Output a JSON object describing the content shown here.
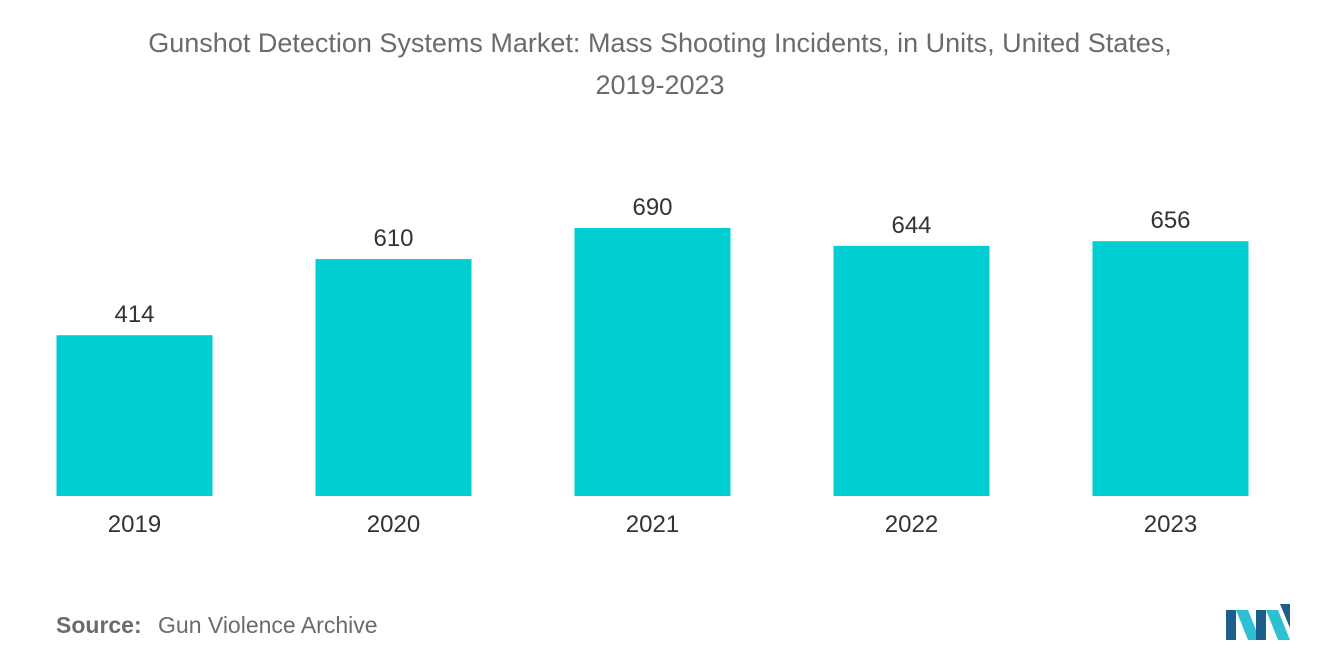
{
  "title_line1": "Gunshot Detection Systems Market: Mass Shooting Incidents, in Units, United States,",
  "title_line2": "2019-2023",
  "source": {
    "label": "Source:",
    "text": "Gun Violence Archive"
  },
  "logo_icon": "mordor-intelligence-logo-icon",
  "colors": {
    "bar": "#00CED1",
    "text": "#333333",
    "logo_dark": "#1d5f8a",
    "logo_light": "#2fbfd3"
  },
  "chart_data": {
    "type": "bar",
    "title": "Gunshot Detection Systems Market: Mass Shooting Incidents, in Units, United States, 2019-2023",
    "categories": [
      "2019",
      "2020",
      "2021",
      "2022",
      "2023"
    ],
    "values": [
      414,
      610,
      690,
      644,
      656
    ],
    "ylim": [
      0,
      690
    ],
    "xlabel": "",
    "ylabel": "",
    "grid": false,
    "legend": "none",
    "data_labels": true
  }
}
